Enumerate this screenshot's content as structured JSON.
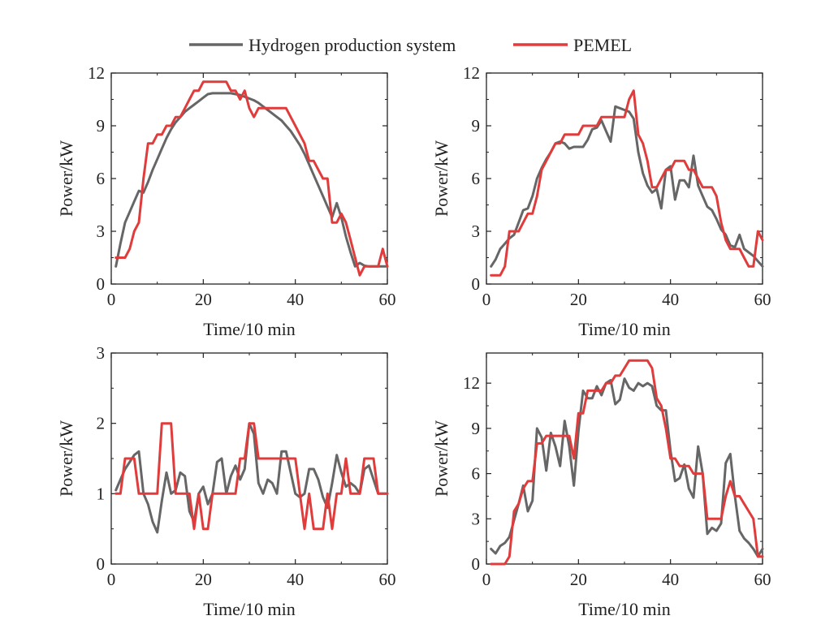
{
  "colors": {
    "hydrogen": "#666666",
    "pemel": "#e03c3c",
    "axis": "#222222"
  },
  "legend": {
    "hydrogen_label": "Hydrogen production system",
    "pemel_label": "PEMEL"
  },
  "chart_data": [
    {
      "type": "line",
      "title": "",
      "xlabel": "Time/10 min",
      "ylabel": "Power/kW",
      "xlim": [
        0,
        60
      ],
      "ylim": [
        0,
        12
      ],
      "xticks": [
        "0",
        "20",
        "40",
        "60"
      ],
      "yticks": [
        "0",
        "3",
        "6",
        "9",
        "12"
      ],
      "series": [
        {
          "name": "Hydrogen production system",
          "x": [
            1,
            2,
            3,
            4,
            5,
            6,
            7,
            8,
            9,
            10,
            11,
            12,
            13,
            14,
            15,
            16,
            17,
            18,
            19,
            20,
            21,
            22,
            23,
            24,
            25,
            26,
            27,
            28,
            29,
            30,
            31,
            32,
            33,
            34,
            35,
            36,
            37,
            38,
            39,
            40,
            41,
            42,
            43,
            44,
            45,
            46,
            47,
            48,
            49,
            50,
            51,
            52,
            53,
            54,
            55,
            56,
            57,
            58,
            59,
            60
          ],
          "y": [
            1.0,
            2.3,
            3.5,
            4.1,
            4.7,
            5.3,
            5.2,
            5.8,
            6.5,
            7.1,
            7.7,
            8.3,
            8.8,
            9.2,
            9.5,
            9.8,
            10.0,
            10.2,
            10.4,
            10.6,
            10.8,
            10.85,
            10.85,
            10.85,
            10.85,
            10.85,
            10.8,
            10.75,
            10.65,
            10.55,
            10.45,
            10.3,
            10.1,
            9.9,
            9.7,
            9.5,
            9.3,
            9.0,
            8.7,
            8.3,
            7.9,
            7.4,
            6.8,
            6.2,
            5.6,
            5.0,
            4.4,
            3.8,
            4.6,
            3.8,
            2.7,
            1.8,
            1.0,
            1.2,
            1.05,
            1.0,
            1.0,
            1.0,
            1.0,
            1.0
          ]
        },
        {
          "name": "PEMEL",
          "x": [
            1,
            2,
            3,
            4,
            5,
            6,
            7,
            8,
            9,
            10,
            11,
            12,
            13,
            14,
            15,
            16,
            17,
            18,
            19,
            20,
            21,
            22,
            23,
            24,
            25,
            26,
            27,
            28,
            29,
            30,
            31,
            32,
            33,
            34,
            35,
            36,
            37,
            38,
            39,
            40,
            41,
            42,
            43,
            44,
            45,
            46,
            47,
            48,
            49,
            50,
            51,
            52,
            53,
            54,
            55,
            56,
            57,
            58,
            59,
            60
          ],
          "y": [
            1.5,
            1.5,
            1.5,
            2.0,
            3.0,
            3.5,
            6.0,
            8.0,
            8.0,
            8.5,
            8.5,
            9.0,
            9.0,
            9.5,
            9.5,
            10.0,
            10.5,
            11.0,
            11.0,
            11.5,
            11.5,
            11.5,
            11.5,
            11.5,
            11.5,
            11.0,
            11.0,
            10.5,
            11.0,
            10.0,
            9.5,
            10.0,
            10.0,
            10.0,
            10.0,
            10.0,
            10.0,
            10.0,
            9.5,
            9.0,
            8.5,
            8.0,
            7.0,
            7.0,
            6.5,
            6.0,
            6.0,
            3.5,
            3.5,
            4.0,
            3.5,
            2.5,
            1.5,
            0.5,
            1.0,
            1.0,
            1.0,
            1.0,
            2.0,
            1.0
          ]
        }
      ]
    },
    {
      "type": "line",
      "title": "",
      "xlabel": "Time/10 min",
      "ylabel": "Power/kW",
      "xlim": [
        0,
        60
      ],
      "ylim": [
        0,
        12
      ],
      "xticks": [
        "0",
        "20",
        "40",
        "60"
      ],
      "yticks": [
        "0",
        "3",
        "6",
        "9",
        "12"
      ],
      "series": [
        {
          "name": "Hydrogen production system",
          "x": [
            1,
            2,
            3,
            4,
            5,
            6,
            7,
            8,
            9,
            10,
            11,
            12,
            13,
            14,
            15,
            16,
            17,
            18,
            19,
            20,
            21,
            22,
            23,
            24,
            25,
            26,
            27,
            28,
            29,
            30,
            31,
            32,
            33,
            34,
            35,
            36,
            37,
            38,
            39,
            40,
            41,
            42,
            43,
            44,
            45,
            46,
            47,
            48,
            49,
            50,
            51,
            52,
            53,
            54,
            55,
            56,
            57,
            58,
            59,
            60
          ],
          "y": [
            1.0,
            1.4,
            2.0,
            2.3,
            2.6,
            2.8,
            3.5,
            4.2,
            4.3,
            5.0,
            6.0,
            6.6,
            7.1,
            7.5,
            8.0,
            8.1,
            8.0,
            7.7,
            7.8,
            7.8,
            7.8,
            8.2,
            8.8,
            8.9,
            9.3,
            8.7,
            8.1,
            10.1,
            10.0,
            9.9,
            9.8,
            9.4,
            7.5,
            6.3,
            5.6,
            5.2,
            5.4,
            4.3,
            6.5,
            6.7,
            4.8,
            5.9,
            5.9,
            5.5,
            7.3,
            5.6,
            5.0,
            4.4,
            4.2,
            3.7,
            3.1,
            2.8,
            2.2,
            2.1,
            2.8,
            2.0,
            1.8,
            1.6,
            1.3,
            1.0
          ]
        },
        {
          "name": "PEMEL",
          "x": [
            1,
            2,
            3,
            4,
            5,
            6,
            7,
            8,
            9,
            10,
            11,
            12,
            13,
            14,
            15,
            16,
            17,
            18,
            19,
            20,
            21,
            22,
            23,
            24,
            25,
            26,
            27,
            28,
            29,
            30,
            31,
            32,
            33,
            34,
            35,
            36,
            37,
            38,
            39,
            40,
            41,
            42,
            43,
            44,
            45,
            46,
            47,
            48,
            49,
            50,
            51,
            52,
            53,
            54,
            55,
            56,
            57,
            58,
            59,
            60
          ],
          "y": [
            0.5,
            0.5,
            0.5,
            1.0,
            3.0,
            3.0,
            3.0,
            3.5,
            4.0,
            4.0,
            5.0,
            6.5,
            7.0,
            7.5,
            8.0,
            8.0,
            8.5,
            8.5,
            8.5,
            8.5,
            9.0,
            9.0,
            9.0,
            9.0,
            9.5,
            9.5,
            9.5,
            9.5,
            9.5,
            9.5,
            10.5,
            11.0,
            8.5,
            8.0,
            7.0,
            5.5,
            5.5,
            6.0,
            6.5,
            6.5,
            7.0,
            7.0,
            7.0,
            6.5,
            6.5,
            6.0,
            5.5,
            5.5,
            5.5,
            5.0,
            3.5,
            2.5,
            2.0,
            2.0,
            2.0,
            1.5,
            1.0,
            1.0,
            3.0,
            2.5
          ]
        }
      ]
    },
    {
      "type": "line",
      "title": "",
      "xlabel": "Time/10 min",
      "ylabel": "Power/kW",
      "xlim": [
        0,
        60
      ],
      "ylim": [
        0,
        3
      ],
      "xticks": [
        "0",
        "20",
        "40",
        "60"
      ],
      "yticks": [
        "0",
        "1",
        "2",
        "3"
      ],
      "series": [
        {
          "name": "Hydrogen production system",
          "x": [
            1,
            2,
            3,
            4,
            5,
            6,
            7,
            8,
            9,
            10,
            11,
            12,
            13,
            14,
            15,
            16,
            17,
            18,
            19,
            20,
            21,
            22,
            23,
            24,
            25,
            26,
            27,
            28,
            29,
            30,
            31,
            32,
            33,
            34,
            35,
            36,
            37,
            38,
            39,
            40,
            41,
            42,
            43,
            44,
            45,
            46,
            47,
            48,
            49,
            50,
            51,
            52,
            53,
            54,
            55,
            56,
            57,
            58,
            59,
            60
          ],
          "y": [
            1.05,
            1.2,
            1.35,
            1.45,
            1.55,
            1.6,
            1.0,
            0.85,
            0.6,
            0.45,
            0.9,
            1.3,
            1.0,
            1.05,
            1.3,
            1.25,
            0.75,
            0.6,
            1.0,
            1.1,
            0.85,
            1.0,
            1.45,
            1.5,
            1.0,
            1.25,
            1.4,
            1.2,
            1.35,
            2.0,
            1.85,
            1.15,
            1.0,
            1.2,
            1.15,
            1.0,
            1.6,
            1.6,
            1.3,
            1.0,
            0.95,
            1.0,
            1.35,
            1.35,
            1.2,
            0.95,
            0.8,
            1.15,
            1.55,
            1.3,
            1.1,
            1.15,
            1.1,
            1.0,
            1.35,
            1.4,
            1.2,
            1.0,
            1.0,
            1.0
          ]
        },
        {
          "name": "PEMEL",
          "x": [
            1,
            2,
            3,
            4,
            5,
            6,
            7,
            8,
            9,
            10,
            11,
            12,
            13,
            14,
            15,
            16,
            17,
            18,
            19,
            20,
            21,
            22,
            23,
            24,
            25,
            26,
            27,
            28,
            29,
            30,
            31,
            32,
            33,
            34,
            35,
            36,
            37,
            38,
            39,
            40,
            41,
            42,
            43,
            44,
            45,
            46,
            47,
            48,
            49,
            50,
            51,
            52,
            53,
            54,
            55,
            56,
            57,
            58,
            59,
            60
          ],
          "y": [
            1.0,
            1.0,
            1.5,
            1.5,
            1.5,
            1.0,
            1.0,
            1.0,
            1.0,
            1.0,
            2.0,
            2.0,
            2.0,
            1.0,
            1.0,
            1.0,
            1.0,
            0.5,
            1.0,
            0.5,
            0.5,
            1.0,
            1.0,
            1.0,
            1.0,
            1.0,
            1.0,
            1.5,
            1.5,
            2.0,
            2.0,
            1.5,
            1.5,
            1.5,
            1.5,
            1.5,
            1.5,
            1.5,
            1.5,
            1.5,
            1.0,
            0.5,
            1.0,
            0.5,
            0.5,
            0.5,
            1.0,
            0.5,
            1.0,
            1.0,
            1.5,
            1.0,
            1.0,
            1.0,
            1.5,
            1.5,
            1.5,
            1.0,
            1.0,
            1.0
          ]
        }
      ]
    },
    {
      "type": "line",
      "title": "",
      "xlabel": "Time/10 min",
      "ylabel": "Power/kW",
      "xlim": [
        0,
        60
      ],
      "ylim": [
        0,
        14
      ],
      "xticks": [
        "0",
        "20",
        "40",
        "60"
      ],
      "yticks": [
        "0",
        "3",
        "6",
        "9",
        "12"
      ],
      "series": [
        {
          "name": "Hydrogen production system",
          "x": [
            1,
            2,
            3,
            4,
            5,
            6,
            7,
            8,
            9,
            10,
            11,
            12,
            13,
            14,
            15,
            16,
            17,
            18,
            19,
            20,
            21,
            22,
            23,
            24,
            25,
            26,
            27,
            28,
            29,
            30,
            31,
            32,
            33,
            34,
            35,
            36,
            37,
            38,
            39,
            40,
            41,
            42,
            43,
            44,
            45,
            46,
            47,
            48,
            49,
            50,
            51,
            52,
            53,
            54,
            55,
            56,
            57,
            58,
            59,
            60
          ],
          "y": [
            1.0,
            0.7,
            1.2,
            1.4,
            1.8,
            2.9,
            4.0,
            5.2,
            3.5,
            4.2,
            9.0,
            8.4,
            6.2,
            8.7,
            7.8,
            6.5,
            9.5,
            7.8,
            5.2,
            8.8,
            11.5,
            11.0,
            11.0,
            11.8,
            11.2,
            12.0,
            12.2,
            10.6,
            10.9,
            12.3,
            11.7,
            11.5,
            12.0,
            11.8,
            12.0,
            11.8,
            10.5,
            10.2,
            10.2,
            7.5,
            5.5,
            5.7,
            6.6,
            5.0,
            4.4,
            7.8,
            6.0,
            2.0,
            2.4,
            2.2,
            2.7,
            6.7,
            7.3,
            4.5,
            2.2,
            1.7,
            1.4,
            1.0,
            0.5,
            1.0
          ]
        },
        {
          "name": "PEMEL",
          "x": [
            1,
            2,
            3,
            4,
            5,
            6,
            7,
            8,
            9,
            10,
            11,
            12,
            13,
            14,
            15,
            16,
            17,
            18,
            19,
            20,
            21,
            22,
            23,
            24,
            25,
            26,
            27,
            28,
            29,
            30,
            31,
            32,
            33,
            34,
            35,
            36,
            37,
            38,
            39,
            40,
            41,
            42,
            43,
            44,
            45,
            46,
            47,
            48,
            49,
            50,
            51,
            52,
            53,
            54,
            55,
            56,
            57,
            58,
            59,
            60
          ],
          "y": [
            0,
            0,
            0,
            0,
            0.5,
            3.5,
            4.0,
            5.0,
            5.5,
            5.5,
            8.0,
            8.0,
            8.5,
            8.5,
            8.5,
            8.5,
            8.5,
            8.5,
            7.0,
            10.0,
            10.0,
            11.5,
            11.5,
            11.5,
            11.5,
            12.0,
            12.0,
            12.5,
            12.5,
            13.0,
            13.5,
            13.5,
            13.5,
            13.5,
            13.5,
            13.0,
            11.0,
            10.5,
            9.0,
            7.0,
            7.0,
            6.5,
            6.5,
            6.5,
            6.0,
            6.0,
            6.0,
            3.0,
            3.0,
            3.0,
            3.0,
            4.5,
            5.5,
            4.5,
            4.5,
            4.0,
            3.5,
            3.0,
            0.5,
            0.5
          ]
        }
      ]
    }
  ]
}
